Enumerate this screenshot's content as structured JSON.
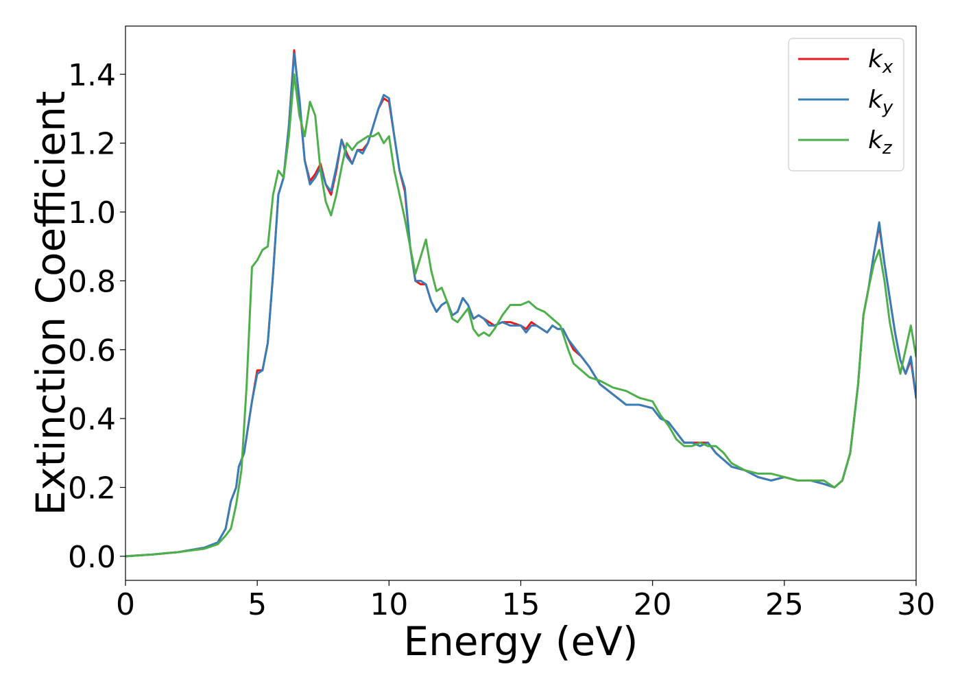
{
  "chart_data": {
    "type": "line",
    "title": "",
    "xlabel": "Energy (eV)",
    "ylabel": "Extinction Coefficient",
    "xlim": [
      0,
      30
    ],
    "ylim": [
      -0.07,
      1.54
    ],
    "xticks": [
      0,
      5,
      10,
      15,
      20,
      25,
      30
    ],
    "yticks": [
      0.0,
      0.2,
      0.4,
      0.6,
      0.8,
      1.0,
      1.2,
      1.4
    ],
    "xtick_labels": [
      "0",
      "5",
      "10",
      "15",
      "20",
      "25",
      "30"
    ],
    "ytick_labels": [
      "0.0",
      "0.2",
      "0.4",
      "0.6",
      "0.8",
      "1.0",
      "1.2",
      "1.4"
    ],
    "grid": false,
    "legend_position": "top-right",
    "series": [
      {
        "name": "k_x",
        "label_base": "k",
        "label_sub": "x",
        "color": "#e41a1c",
        "x": [
          0,
          1,
          2,
          3,
          3.5,
          3.8,
          4.0,
          4.2,
          4.3,
          4.5,
          4.8,
          5.0,
          5.2,
          5.4,
          5.6,
          5.8,
          6.0,
          6.2,
          6.4,
          6.6,
          6.8,
          7.0,
          7.2,
          7.4,
          7.6,
          7.8,
          8.0,
          8.2,
          8.4,
          8.6,
          8.8,
          9.0,
          9.2,
          9.4,
          9.6,
          9.8,
          10.0,
          10.2,
          10.4,
          10.6,
          10.8,
          11.0,
          11.2,
          11.4,
          11.6,
          11.8,
          12.0,
          12.2,
          12.4,
          12.6,
          12.8,
          13.0,
          13.2,
          13.4,
          13.6,
          13.8,
          14.0,
          14.3,
          14.6,
          15.0,
          15.2,
          15.4,
          15.6,
          15.8,
          16.0,
          16.2,
          16.4,
          16.6,
          16.8,
          17.0,
          17.3,
          17.6,
          18.0,
          18.5,
          19.0,
          19.5,
          20.0,
          20.3,
          20.6,
          20.9,
          21.2,
          21.5,
          21.8,
          22.1,
          22.4,
          22.7,
          23.0,
          23.5,
          24.0,
          24.5,
          25.0,
          25.5,
          26.0,
          26.5,
          26.9,
          27.2,
          27.5,
          27.8,
          28.0,
          28.2,
          28.4,
          28.6,
          28.8,
          29.0,
          29.2,
          29.4,
          29.6,
          29.8,
          30.0
        ],
        "y": [
          0.0,
          0.005,
          0.012,
          0.025,
          0.04,
          0.08,
          0.16,
          0.2,
          0.26,
          0.3,
          0.45,
          0.54,
          0.54,
          0.62,
          0.82,
          1.05,
          1.1,
          1.25,
          1.47,
          1.32,
          1.15,
          1.09,
          1.11,
          1.14,
          1.08,
          1.05,
          1.12,
          1.21,
          1.17,
          1.14,
          1.18,
          1.18,
          1.2,
          1.25,
          1.3,
          1.33,
          1.32,
          1.22,
          1.12,
          1.06,
          0.9,
          0.8,
          0.79,
          0.79,
          0.74,
          0.71,
          0.73,
          0.74,
          0.7,
          0.71,
          0.75,
          0.73,
          0.69,
          0.7,
          0.69,
          0.68,
          0.67,
          0.68,
          0.68,
          0.67,
          0.66,
          0.68,
          0.67,
          0.66,
          0.65,
          0.67,
          0.66,
          0.66,
          0.63,
          0.6,
          0.58,
          0.55,
          0.5,
          0.47,
          0.44,
          0.44,
          0.43,
          0.4,
          0.39,
          0.36,
          0.33,
          0.33,
          0.33,
          0.33,
          0.3,
          0.28,
          0.26,
          0.25,
          0.23,
          0.22,
          0.23,
          0.22,
          0.22,
          0.21,
          0.2,
          0.22,
          0.3,
          0.5,
          0.7,
          0.78,
          0.88,
          0.96,
          0.85,
          0.75,
          0.65,
          0.57,
          0.53,
          0.57,
          0.46
        ]
      },
      {
        "name": "k_y",
        "label_base": "k",
        "label_sub": "y",
        "color": "#377eb8",
        "x": [
          0,
          1,
          2,
          3,
          3.5,
          3.8,
          4.0,
          4.2,
          4.3,
          4.5,
          4.8,
          5.0,
          5.2,
          5.4,
          5.6,
          5.8,
          6.0,
          6.2,
          6.4,
          6.6,
          6.8,
          7.0,
          7.2,
          7.4,
          7.6,
          7.8,
          8.0,
          8.2,
          8.4,
          8.6,
          8.8,
          9.0,
          9.2,
          9.4,
          9.6,
          9.8,
          10.0,
          10.2,
          10.4,
          10.6,
          10.8,
          11.0,
          11.2,
          11.4,
          11.6,
          11.8,
          12.0,
          12.2,
          12.4,
          12.6,
          12.8,
          13.0,
          13.2,
          13.4,
          13.6,
          13.8,
          14.0,
          14.3,
          14.6,
          15.0,
          15.2,
          15.4,
          15.6,
          15.8,
          16.0,
          16.2,
          16.4,
          16.6,
          16.8,
          17.0,
          17.3,
          17.6,
          18.0,
          18.5,
          19.0,
          19.5,
          20.0,
          20.3,
          20.6,
          20.9,
          21.2,
          21.5,
          21.8,
          22.1,
          22.4,
          22.7,
          23.0,
          23.5,
          24.0,
          24.5,
          25.0,
          25.5,
          26.0,
          26.5,
          26.9,
          27.2,
          27.5,
          27.8,
          28.0,
          28.2,
          28.4,
          28.6,
          28.8,
          29.0,
          29.2,
          29.4,
          29.6,
          29.8,
          30.0
        ],
        "y": [
          0.0,
          0.005,
          0.012,
          0.025,
          0.04,
          0.08,
          0.16,
          0.2,
          0.26,
          0.3,
          0.45,
          0.53,
          0.54,
          0.62,
          0.82,
          1.05,
          1.1,
          1.25,
          1.46,
          1.33,
          1.15,
          1.08,
          1.1,
          1.13,
          1.08,
          1.06,
          1.13,
          1.21,
          1.16,
          1.14,
          1.18,
          1.17,
          1.2,
          1.25,
          1.3,
          1.34,
          1.33,
          1.22,
          1.12,
          1.07,
          0.9,
          0.8,
          0.8,
          0.79,
          0.74,
          0.71,
          0.73,
          0.74,
          0.7,
          0.71,
          0.75,
          0.73,
          0.69,
          0.7,
          0.69,
          0.67,
          0.67,
          0.68,
          0.67,
          0.67,
          0.65,
          0.67,
          0.67,
          0.66,
          0.65,
          0.67,
          0.66,
          0.66,
          0.63,
          0.61,
          0.58,
          0.55,
          0.5,
          0.47,
          0.44,
          0.44,
          0.43,
          0.4,
          0.39,
          0.36,
          0.33,
          0.33,
          0.32,
          0.33,
          0.3,
          0.28,
          0.26,
          0.25,
          0.23,
          0.22,
          0.23,
          0.22,
          0.22,
          0.21,
          0.2,
          0.22,
          0.3,
          0.5,
          0.7,
          0.78,
          0.88,
          0.97,
          0.85,
          0.75,
          0.65,
          0.57,
          0.53,
          0.58,
          0.46
        ]
      },
      {
        "name": "k_z",
        "label_base": "k",
        "label_sub": "z",
        "color": "#4daf4a",
        "x": [
          0,
          1,
          2,
          3,
          3.5,
          3.8,
          4.0,
          4.2,
          4.4,
          4.6,
          4.8,
          5.0,
          5.2,
          5.4,
          5.6,
          5.8,
          6.0,
          6.2,
          6.4,
          6.6,
          6.8,
          7.0,
          7.2,
          7.4,
          7.6,
          7.8,
          8.0,
          8.2,
          8.4,
          8.6,
          8.8,
          9.0,
          9.2,
          9.4,
          9.6,
          9.8,
          10.0,
          10.2,
          10.4,
          10.6,
          10.8,
          11.0,
          11.2,
          11.4,
          11.6,
          11.8,
          12.0,
          12.2,
          12.4,
          12.6,
          12.8,
          13.0,
          13.2,
          13.4,
          13.6,
          13.8,
          14.0,
          14.3,
          14.6,
          15.0,
          15.3,
          15.6,
          15.9,
          16.2,
          16.5,
          16.8,
          17.0,
          17.3,
          17.6,
          18.0,
          18.5,
          19.0,
          19.5,
          20.0,
          20.3,
          20.6,
          20.9,
          21.2,
          21.5,
          21.8,
          22.1,
          22.4,
          22.7,
          23.0,
          23.5,
          24.0,
          24.5,
          25.0,
          25.5,
          26.0,
          26.5,
          26.9,
          27.2,
          27.5,
          27.8,
          28.0,
          28.2,
          28.4,
          28.6,
          28.8,
          29.0,
          29.2,
          29.4,
          29.6,
          29.8,
          30.0
        ],
        "y": [
          0.0,
          0.005,
          0.012,
          0.022,
          0.035,
          0.06,
          0.08,
          0.15,
          0.25,
          0.5,
          0.84,
          0.86,
          0.89,
          0.9,
          1.05,
          1.12,
          1.1,
          1.22,
          1.4,
          1.28,
          1.22,
          1.32,
          1.28,
          1.12,
          1.03,
          0.99,
          1.05,
          1.13,
          1.2,
          1.18,
          1.2,
          1.21,
          1.22,
          1.22,
          1.23,
          1.2,
          1.22,
          1.12,
          1.05,
          0.98,
          0.9,
          0.82,
          0.87,
          0.92,
          0.83,
          0.77,
          0.78,
          0.74,
          0.69,
          0.68,
          0.7,
          0.72,
          0.66,
          0.64,
          0.65,
          0.64,
          0.66,
          0.7,
          0.73,
          0.73,
          0.74,
          0.72,
          0.71,
          0.69,
          0.67,
          0.6,
          0.56,
          0.54,
          0.52,
          0.51,
          0.49,
          0.48,
          0.46,
          0.45,
          0.41,
          0.38,
          0.34,
          0.32,
          0.32,
          0.33,
          0.32,
          0.32,
          0.3,
          0.27,
          0.25,
          0.24,
          0.24,
          0.23,
          0.22,
          0.22,
          0.22,
          0.2,
          0.22,
          0.3,
          0.5,
          0.7,
          0.78,
          0.85,
          0.89,
          0.8,
          0.68,
          0.6,
          0.53,
          0.6,
          0.67,
          0.58
        ]
      }
    ]
  }
}
